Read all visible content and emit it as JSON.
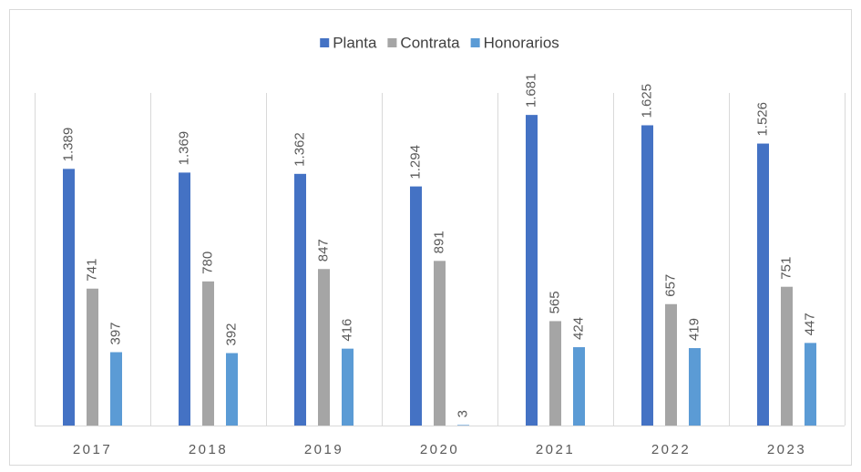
{
  "chart_data": {
    "type": "bar",
    "categories": [
      "2017",
      "2018",
      "2019",
      "2020",
      "2021",
      "2022",
      "2023"
    ],
    "series": [
      {
        "name": "Planta",
        "color": "#4472c4",
        "values": [
          1389,
          1369,
          1362,
          1294,
          1681,
          1625,
          1526
        ],
        "value_labels": [
          "1.389",
          "1.369",
          "1.362",
          "1.294",
          "1.681",
          "1.625",
          "1.526"
        ]
      },
      {
        "name": "Contrata",
        "color": "#a5a5a5",
        "values": [
          741,
          780,
          847,
          891,
          565,
          657,
          751
        ]
      },
      {
        "name": "Honorarios",
        "color": "#5b9bd5",
        "values": [
          397,
          392,
          416,
          3,
          424,
          419,
          447
        ]
      }
    ],
    "ylim": [
      0,
      1800
    ],
    "legend": "top"
  }
}
